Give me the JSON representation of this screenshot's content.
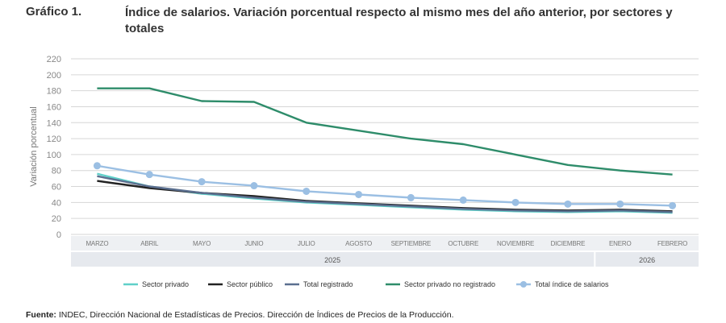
{
  "header": {
    "figure_number": "Gráfico 1.",
    "title": "Índice de salarios. Variación porcentual respecto al mismo mes del año anterior, por sectores y totales"
  },
  "footer": {
    "source_label": "Fuente:",
    "source_text": " INDEC, Dirección Nacional de Estadísticas de Precios. Dirección de Índices de Precios de la Producción."
  },
  "chart_data": {
    "type": "line",
    "ylabel": "Variación porcentual",
    "ylim": [
      0,
      220
    ],
    "yticks": [
      0,
      20,
      40,
      60,
      80,
      100,
      120,
      140,
      160,
      180,
      200,
      220
    ],
    "grid": true,
    "legend_position": "bottom",
    "categories": [
      "MARZO",
      "ABRIL",
      "MAYO",
      "JUNIO",
      "JULIO",
      "AGOSTO",
      "SEPTIEMBRE",
      "OCTUBRE",
      "NOVIEMBRE",
      "DICIEMBRE",
      "ENERO",
      "FEBRERO"
    ],
    "year_groups": [
      {
        "label": "2025",
        "start": 0,
        "end": 9
      },
      {
        "label": "2026",
        "start": 10,
        "end": 11
      }
    ],
    "series": [
      {
        "name": "Sector privado",
        "color": "#5fd0c9",
        "marker": false,
        "values": [
          76,
          60,
          51,
          45,
          40,
          37,
          34,
          31,
          29,
          28,
          29,
          27
        ]
      },
      {
        "name": "Sector público",
        "color": "#222222",
        "marker": false,
        "values": [
          67,
          58,
          52,
          48,
          42,
          39,
          36,
          33,
          31,
          30,
          31,
          29
        ]
      },
      {
        "name": "Total registrado",
        "color": "#5b6f8f",
        "marker": false,
        "values": [
          73,
          60,
          52,
          46,
          41,
          38,
          35,
          32,
          30,
          29,
          30,
          28
        ]
      },
      {
        "name": "Sector privado no registrado",
        "color": "#2e8c6a",
        "marker": false,
        "values": [
          183,
          183,
          167,
          166,
          140,
          130,
          120,
          113,
          100,
          87,
          80,
          75
        ]
      },
      {
        "name": "Total índice de salarios",
        "color": "#9bbfe3",
        "marker": true,
        "values": [
          86,
          75,
          66,
          61,
          54,
          50,
          46,
          43,
          40,
          38,
          38,
          36
        ]
      }
    ]
  }
}
